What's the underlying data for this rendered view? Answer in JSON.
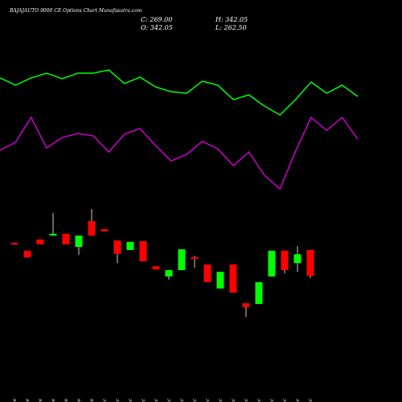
{
  "header": {
    "title": "BAJAJAUTO 9000 CE Options Chart Munafasutra.com",
    "close": "C: 269.00",
    "high": "H: 342.05",
    "open": "O: 342.05",
    "low": "L: 262.50"
  },
  "chart_data": [
    {
      "type": "line",
      "ylim": [
        0,
        100
      ],
      "series": [
        {
          "color": "#00ff00",
          "values": [
            90.6,
            85.6,
            90.6,
            93.9,
            90,
            93.9,
            93.9,
            96.1,
            86.7,
            91.1,
            84.4,
            81.1,
            80,
            88.3,
            85.6,
            75.6,
            78.9,
            71.1,
            65,
            75.6,
            87.8,
            80,
            85.6,
            77.8
          ]
        },
        {
          "color": "#cc00cc",
          "values": [
            40.6,
            46.1,
            63.3,
            42.2,
            49.4,
            52.2,
            50.6,
            39.4,
            51.7,
            55.6,
            43.9,
            33.3,
            37.8,
            46.7,
            41.7,
            30,
            39.4,
            23.3,
            13.9,
            40,
            63.3,
            54.4,
            63.3,
            48.3
          ]
        }
      ]
    },
    {
      "type": "candlestick",
      "ylim": [
        139,
        481
      ],
      "up_color": "#00ff00",
      "down_color": "#ff0000",
      "categories": [
        "20 Nov",
        "21 Nov",
        "22 Nov",
        "25 Nov",
        "27 Nov",
        "28 Nov",
        "29 Nov",
        "02 Dec",
        "03 Dec",
        "04 Dec",
        "05 Dec",
        "06 Dec",
        "09 Dec",
        "10 Dec",
        "11 Dec",
        "12 Dec",
        "13 Dec",
        "16 Dec",
        "17 Dec",
        "18 Dec",
        "19 Dec",
        "20 Dec",
        "23 Dec",
        "26 Dec"
      ],
      "open": [
        362,
        340,
        372,
        383,
        388,
        351,
        424,
        401,
        369,
        342,
        367,
        296,
        267,
        285,
        322,
        301,
        233,
        301,
        191,
        189,
        267,
        340,
        305,
        342.05
      ],
      "high": [
        363,
        340,
        372,
        447,
        388,
        383,
        458,
        401,
        369,
        365,
        367,
        296,
        285,
        344,
        326,
        301,
        280,
        301,
        191,
        251,
        340,
        340,
        353,
        342.05
      ],
      "low": [
        358,
        321,
        358,
        383,
        358,
        328,
        383,
        395,
        305,
        342,
        310,
        287,
        258,
        285,
        292,
        251,
        233,
        221,
        152,
        189,
        267,
        276,
        280,
        262.5
      ],
      "close": [
        358,
        321,
        358,
        388,
        358,
        383,
        383,
        395,
        331,
        365,
        310,
        287,
        285,
        344,
        317,
        251,
        280,
        221,
        180,
        251,
        340,
        285,
        330,
        269
      ]
    }
  ]
}
